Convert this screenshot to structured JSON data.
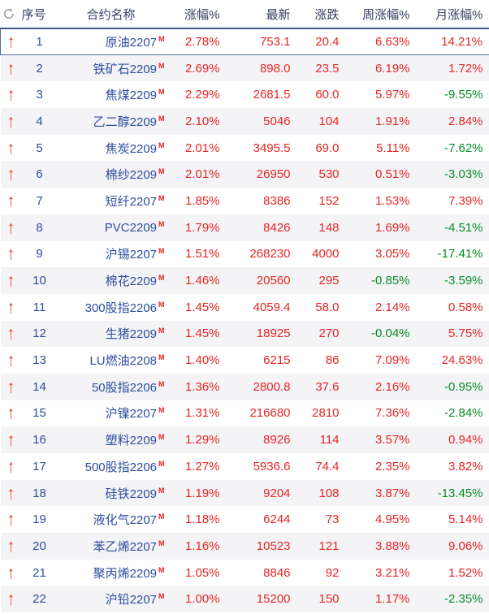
{
  "colors": {
    "up_red": "#e62626",
    "down_green": "#068c26",
    "contract_blue": "#2d4d9e",
    "header_text": "#353e63",
    "header_rule": "#39598e",
    "alt_row_bg": "#f4f4f7",
    "selected_border": "#4f6fa5",
    "arrow_red": "#e5341f",
    "marker_red": "#e62222",
    "refresh_gray": "#999999"
  },
  "icons": {
    "refresh": "circular-refresh-arrow",
    "row_direction": "up-arrow",
    "contract_marker": "M"
  },
  "table": {
    "columns": {
      "seq": "序号",
      "name": "合约名称",
      "chg_pct": "涨幅%",
      "last": "最新",
      "chg": "涨跌",
      "week_pct": "周涨幅%",
      "month_pct": "月涨幅%"
    },
    "rows": [
      {
        "seq": "1",
        "name": "原油2207",
        "marker": "M",
        "chg_pct": "2.78%",
        "last": "753.1",
        "chg": "20.4",
        "week_pct": "6.63%",
        "week_dir": "up",
        "month_pct": "14.21%",
        "month_dir": "up",
        "selected": true
      },
      {
        "seq": "2",
        "name": "铁矿石2209",
        "marker": "M",
        "chg_pct": "2.69%",
        "last": "898.0",
        "chg": "23.5",
        "week_pct": "6.19%",
        "week_dir": "up",
        "month_pct": "1.72%",
        "month_dir": "up",
        "selected": false
      },
      {
        "seq": "3",
        "name": "焦煤2209",
        "marker": "M",
        "chg_pct": "2.29%",
        "last": "2681.5",
        "chg": "60.0",
        "week_pct": "5.97%",
        "week_dir": "up",
        "month_pct": "-9.55%",
        "month_dir": "down",
        "selected": false
      },
      {
        "seq": "4",
        "name": "乙二醇2209",
        "marker": "M",
        "chg_pct": "2.10%",
        "last": "5046",
        "chg": "104",
        "week_pct": "1.91%",
        "week_dir": "up",
        "month_pct": "2.84%",
        "month_dir": "up",
        "selected": false
      },
      {
        "seq": "5",
        "name": "焦炭2209",
        "marker": "M",
        "chg_pct": "2.01%",
        "last": "3495.5",
        "chg": "69.0",
        "week_pct": "5.11%",
        "week_dir": "up",
        "month_pct": "-7.62%",
        "month_dir": "down",
        "selected": false
      },
      {
        "seq": "6",
        "name": "棉纱2209",
        "marker": "M",
        "chg_pct": "2.01%",
        "last": "26950",
        "chg": "530",
        "week_pct": "0.51%",
        "week_dir": "up",
        "month_pct": "-3.03%",
        "month_dir": "down",
        "selected": false
      },
      {
        "seq": "7",
        "name": "短纤2207",
        "marker": "M",
        "chg_pct": "1.85%",
        "last": "8386",
        "chg": "152",
        "week_pct": "1.53%",
        "week_dir": "up",
        "month_pct": "7.39%",
        "month_dir": "up",
        "selected": false
      },
      {
        "seq": "8",
        "name": "PVC2209",
        "marker": "M",
        "chg_pct": "1.79%",
        "last": "8426",
        "chg": "148",
        "week_pct": "1.69%",
        "week_dir": "up",
        "month_pct": "-4.51%",
        "month_dir": "down",
        "selected": false
      },
      {
        "seq": "9",
        "name": "沪锡2207",
        "marker": "M",
        "chg_pct": "1.51%",
        "last": "268230",
        "chg": "4000",
        "week_pct": "3.05%",
        "week_dir": "up",
        "month_pct": "-17.41%",
        "month_dir": "down",
        "selected": false
      },
      {
        "seq": "10",
        "name": "棉花2209",
        "marker": "M",
        "chg_pct": "1.46%",
        "last": "20560",
        "chg": "295",
        "week_pct": "-0.85%",
        "week_dir": "down",
        "month_pct": "-3.59%",
        "month_dir": "down",
        "selected": false
      },
      {
        "seq": "11",
        "name": "300股指2206",
        "marker": "M",
        "chg_pct": "1.45%",
        "last": "4059.4",
        "chg": "58.0",
        "week_pct": "2.14%",
        "week_dir": "up",
        "month_pct": "0.58%",
        "month_dir": "up",
        "selected": false
      },
      {
        "seq": "12",
        "name": "生猪2209",
        "marker": "M",
        "chg_pct": "1.45%",
        "last": "18925",
        "chg": "270",
        "week_pct": "-0.04%",
        "week_dir": "down",
        "month_pct": "5.75%",
        "month_dir": "up",
        "selected": false
      },
      {
        "seq": "13",
        "name": "LU燃油2208",
        "marker": "M",
        "chg_pct": "1.40%",
        "last": "6215",
        "chg": "86",
        "week_pct": "7.09%",
        "week_dir": "up",
        "month_pct": "24.63%",
        "month_dir": "up",
        "selected": false
      },
      {
        "seq": "14",
        "name": "50股指2206",
        "marker": "M",
        "chg_pct": "1.36%",
        "last": "2800.8",
        "chg": "37.6",
        "week_pct": "2.16%",
        "week_dir": "up",
        "month_pct": "-0.95%",
        "month_dir": "down",
        "selected": false
      },
      {
        "seq": "15",
        "name": "沪镍2207",
        "marker": "M",
        "chg_pct": "1.31%",
        "last": "216680",
        "chg": "2810",
        "week_pct": "7.36%",
        "week_dir": "up",
        "month_pct": "-2.84%",
        "month_dir": "down",
        "selected": false
      },
      {
        "seq": "16",
        "name": "塑料2209",
        "marker": "M",
        "chg_pct": "1.29%",
        "last": "8926",
        "chg": "114",
        "week_pct": "3.57%",
        "week_dir": "up",
        "month_pct": "0.94%",
        "month_dir": "up",
        "selected": false
      },
      {
        "seq": "17",
        "name": "500股指2206",
        "marker": "M",
        "chg_pct": "1.27%",
        "last": "5936.6",
        "chg": "74.4",
        "week_pct": "2.35%",
        "week_dir": "up",
        "month_pct": "3.82%",
        "month_dir": "up",
        "selected": false
      },
      {
        "seq": "18",
        "name": "硅铁2209",
        "marker": "M",
        "chg_pct": "1.19%",
        "last": "9204",
        "chg": "108",
        "week_pct": "3.87%",
        "week_dir": "up",
        "month_pct": "-13.45%",
        "month_dir": "down",
        "selected": false
      },
      {
        "seq": "19",
        "name": "液化气2207",
        "marker": "M",
        "chg_pct": "1.18%",
        "last": "6244",
        "chg": "73",
        "week_pct": "4.95%",
        "week_dir": "up",
        "month_pct": "5.14%",
        "month_dir": "up",
        "selected": false
      },
      {
        "seq": "20",
        "name": "苯乙烯2207",
        "marker": "M",
        "chg_pct": "1.16%",
        "last": "10523",
        "chg": "121",
        "week_pct": "3.88%",
        "week_dir": "up",
        "month_pct": "9.06%",
        "month_dir": "up",
        "selected": false
      },
      {
        "seq": "21",
        "name": "聚丙烯2209",
        "marker": "M",
        "chg_pct": "1.05%",
        "last": "8846",
        "chg": "92",
        "week_pct": "3.21%",
        "week_dir": "up",
        "month_pct": "1.52%",
        "month_dir": "up",
        "selected": false
      },
      {
        "seq": "22",
        "name": "沪铅2207",
        "marker": "M",
        "chg_pct": "1.00%",
        "last": "15200",
        "chg": "150",
        "week_pct": "1.17%",
        "week_dir": "up",
        "month_pct": "-2.35%",
        "month_dir": "down",
        "selected": false
      }
    ]
  }
}
